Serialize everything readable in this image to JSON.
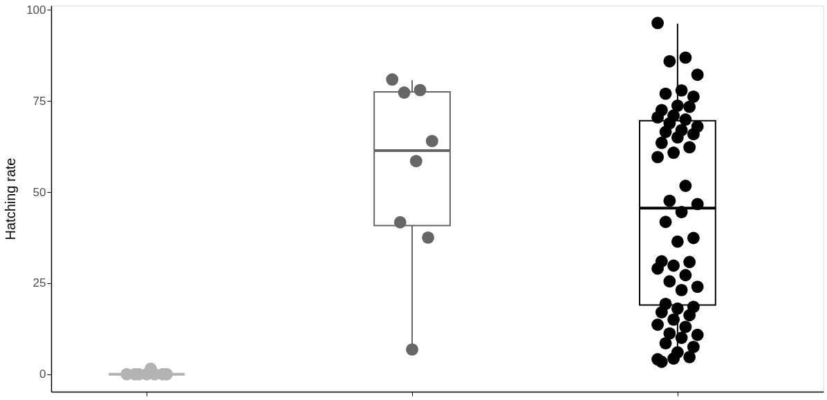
{
  "chart_data": {
    "type": "box",
    "ylabel": "Hatching rate",
    "categories": [
      null,
      null,
      null
    ],
    "colors": [
      "#b3b3b3",
      "#666666",
      "#000000"
    ],
    "boxes": [
      {
        "low": 0,
        "q1": 0,
        "median": 0,
        "q3": 0,
        "high": 0
      },
      {
        "low": 6.9,
        "q1": 40.8,
        "median": 61.4,
        "q3": 77.5,
        "high": 80.7
      },
      {
        "low": 3.3,
        "q1": 19,
        "median": 45.6,
        "q3": 69.6,
        "high": 96.2
      }
    ],
    "series": [
      {
        "type": "scatter",
        "colors": [
          "#b3b3b3",
          "#666666",
          "#000000"
        ],
        "values": [
          0,
          80.9,
          96.4
        ]
      },
      {
        "type": "scatter",
        "colors": [
          "#b3b3b3",
          "#666666",
          "#000000"
        ],
        "values": [
          0,
          78.0,
          86.9
        ]
      },
      {
        "type": "scatter",
        "colors": [
          "#b3b3b3",
          "#666666",
          "#000000"
        ],
        "values": [
          0,
          77.3,
          85.9
        ]
      },
      {
        "type": "scatter",
        "colors": [
          "#b3b3b3",
          "#666666",
          "#000000"
        ],
        "values": [
          0,
          64.0,
          82.2
        ]
      },
      {
        "type": "scatter",
        "colors": [
          "#b3b3b3",
          "#666666",
          "#000000"
        ],
        "values": [
          1.5,
          58.5,
          77.9
        ]
      },
      {
        "type": "scatter",
        "colors": [
          "#b3b3b3",
          "#666666",
          "#000000"
        ],
        "values": [
          0,
          41.7,
          77.0
        ]
      },
      {
        "type": "scatter",
        "colors": [
          "#b3b3b3",
          "#666666",
          "#000000"
        ],
        "values": [
          0,
          37.5,
          76.2
        ]
      },
      {
        "type": "scatter",
        "colors": [
          "#b3b3b3",
          "#666666",
          "#000000"
        ],
        "values": [
          0,
          6.8,
          73.7
        ]
      },
      {
        "type": "scatter",
        "colors": [
          "#b3b3b3",
          "#666666",
          "#000000"
        ],
        "values": [
          null,
          null,
          72.5
        ]
      },
      {
        "type": "scatter",
        "colors": [
          "#b3b3b3",
          "#666666",
          "#000000"
        ],
        "values": [
          null,
          null,
          73.4
        ]
      },
      {
        "type": "scatter",
        "colors": [
          "#b3b3b3",
          "#666666",
          "#000000"
        ],
        "values": [
          null,
          null,
          71.0
        ]
      },
      {
        "type": "scatter",
        "colors": [
          "#b3b3b3",
          "#666666",
          "#000000"
        ],
        "values": [
          null,
          null,
          70.5
        ]
      },
      {
        "type": "scatter",
        "colors": [
          "#b3b3b3",
          "#666666",
          "#000000"
        ],
        "values": [
          null,
          null,
          69.9
        ]
      },
      {
        "type": "scatter",
        "colors": [
          "#b3b3b3",
          "#666666",
          "#000000"
        ],
        "values": [
          null,
          null,
          68.9
        ]
      },
      {
        "type": "scatter",
        "colors": [
          "#b3b3b3",
          "#666666",
          "#000000"
        ],
        "values": [
          null,
          null,
          68.0
        ]
      },
      {
        "type": "scatter",
        "colors": [
          "#b3b3b3",
          "#666666",
          "#000000"
        ],
        "values": [
          null,
          null,
          67.0
        ]
      },
      {
        "type": "scatter",
        "colors": [
          "#b3b3b3",
          "#666666",
          "#000000"
        ],
        "values": [
          null,
          null,
          66.5
        ]
      },
      {
        "type": "scatter",
        "colors": [
          "#b3b3b3",
          "#666666",
          "#000000"
        ],
        "values": [
          null,
          null,
          65.9
        ]
      },
      {
        "type": "scatter",
        "colors": [
          "#b3b3b3",
          "#666666",
          "#000000"
        ],
        "values": [
          null,
          null,
          65.0
        ]
      },
      {
        "type": "scatter",
        "colors": [
          "#b3b3b3",
          "#666666",
          "#000000"
        ],
        "values": [
          null,
          null,
          63.5
        ]
      },
      {
        "type": "scatter",
        "colors": [
          "#b3b3b3",
          "#666666",
          "#000000"
        ],
        "values": [
          null,
          null,
          62.3
        ]
      },
      {
        "type": "scatter",
        "colors": [
          "#b3b3b3",
          "#666666",
          "#000000"
        ],
        "values": [
          null,
          null,
          60.8
        ]
      },
      {
        "type": "scatter",
        "colors": [
          "#b3b3b3",
          "#666666",
          "#000000"
        ],
        "values": [
          null,
          null,
          59.6
        ]
      },
      {
        "type": "scatter",
        "colors": [
          "#b3b3b3",
          "#666666",
          "#000000"
        ],
        "values": [
          null,
          null,
          51.7
        ]
      },
      {
        "type": "scatter",
        "colors": [
          "#b3b3b3",
          "#666666",
          "#000000"
        ],
        "values": [
          null,
          null,
          47.6
        ]
      },
      {
        "type": "scatter",
        "colors": [
          "#b3b3b3",
          "#666666",
          "#000000"
        ],
        "values": [
          null,
          null,
          46.7
        ]
      },
      {
        "type": "scatter",
        "colors": [
          "#b3b3b3",
          "#666666",
          "#000000"
        ],
        "values": [
          null,
          null,
          44.5
        ]
      },
      {
        "type": "scatter",
        "colors": [
          "#b3b3b3",
          "#666666",
          "#000000"
        ],
        "values": [
          null,
          null,
          41.8
        ]
      },
      {
        "type": "scatter",
        "colors": [
          "#b3b3b3",
          "#666666",
          "#000000"
        ],
        "values": [
          null,
          null,
          37.4
        ]
      },
      {
        "type": "scatter",
        "colors": [
          "#b3b3b3",
          "#666666",
          "#000000"
        ],
        "values": [
          null,
          null,
          36.4
        ]
      },
      {
        "type": "scatter",
        "colors": [
          "#b3b3b3",
          "#666666",
          "#000000"
        ],
        "values": [
          null,
          null,
          31.0
        ]
      },
      {
        "type": "scatter",
        "colors": [
          "#b3b3b3",
          "#666666",
          "#000000"
        ],
        "values": [
          null,
          null,
          30.8
        ]
      },
      {
        "type": "scatter",
        "colors": [
          "#b3b3b3",
          "#666666",
          "#000000"
        ],
        "values": [
          null,
          null,
          29.8
        ]
      },
      {
        "type": "scatter",
        "colors": [
          "#b3b3b3",
          "#666666",
          "#000000"
        ],
        "values": [
          null,
          null,
          29.0
        ]
      },
      {
        "type": "scatter",
        "colors": [
          "#b3b3b3",
          "#666666",
          "#000000"
        ],
        "values": [
          null,
          null,
          27.2
        ]
      },
      {
        "type": "scatter",
        "colors": [
          "#b3b3b3",
          "#666666",
          "#000000"
        ],
        "values": [
          null,
          null,
          25.5
        ]
      },
      {
        "type": "scatter",
        "colors": [
          "#b3b3b3",
          "#666666",
          "#000000"
        ],
        "values": [
          null,
          null,
          24.0
        ]
      },
      {
        "type": "scatter",
        "colors": [
          "#b3b3b3",
          "#666666",
          "#000000"
        ],
        "values": [
          null,
          null,
          23.1
        ]
      },
      {
        "type": "scatter",
        "colors": [
          "#b3b3b3",
          "#666666",
          "#000000"
        ],
        "values": [
          null,
          null,
          19.3
        ]
      },
      {
        "type": "scatter",
        "colors": [
          "#b3b3b3",
          "#666666",
          "#000000"
        ],
        "values": [
          null,
          null,
          18.5
        ]
      },
      {
        "type": "scatter",
        "colors": [
          "#b3b3b3",
          "#666666",
          "#000000"
        ],
        "values": [
          null,
          null,
          18.0
        ]
      },
      {
        "type": "scatter",
        "colors": [
          "#b3b3b3",
          "#666666",
          "#000000"
        ],
        "values": [
          null,
          null,
          17.0
        ]
      },
      {
        "type": "scatter",
        "colors": [
          "#b3b3b3",
          "#666666",
          "#000000"
        ],
        "values": [
          null,
          null,
          16.2
        ]
      },
      {
        "type": "scatter",
        "colors": [
          "#b3b3b3",
          "#666666",
          "#000000"
        ],
        "values": [
          null,
          null,
          15.0
        ]
      },
      {
        "type": "scatter",
        "colors": [
          "#b3b3b3",
          "#666666",
          "#000000"
        ],
        "values": [
          null,
          null,
          13.6
        ]
      },
      {
        "type": "scatter",
        "colors": [
          "#b3b3b3",
          "#666666",
          "#000000"
        ],
        "values": [
          null,
          null,
          13.0
        ]
      },
      {
        "type": "scatter",
        "colors": [
          "#b3b3b3",
          "#666666",
          "#000000"
        ],
        "values": [
          null,
          null,
          11.2
        ]
      },
      {
        "type": "scatter",
        "colors": [
          "#b3b3b3",
          "#666666",
          "#000000"
        ],
        "values": [
          null,
          null,
          10.8
        ]
      },
      {
        "type": "scatter",
        "colors": [
          "#b3b3b3",
          "#666666",
          "#000000"
        ],
        "values": [
          null,
          null,
          10.0
        ]
      },
      {
        "type": "scatter",
        "colors": [
          "#b3b3b3",
          "#666666",
          "#000000"
        ],
        "values": [
          null,
          null,
          8.5
        ]
      },
      {
        "type": "scatter",
        "colors": [
          "#b3b3b3",
          "#666666",
          "#000000"
        ],
        "values": [
          null,
          null,
          7.5
        ]
      },
      {
        "type": "scatter",
        "colors": [
          "#b3b3b3",
          "#666666",
          "#000000"
        ],
        "values": [
          null,
          null,
          6.0
        ]
      },
      {
        "type": "scatter",
        "colors": [
          "#b3b3b3",
          "#666666",
          "#000000"
        ],
        "values": [
          null,
          null,
          3.4
        ]
      },
      {
        "type": "scatter",
        "colors": [
          "#b3b3b3",
          "#666666",
          "#000000"
        ],
        "values": [
          null,
          null,
          4.7
        ]
      },
      {
        "type": "scatter",
        "colors": [
          "#b3b3b3",
          "#666666",
          "#000000"
        ],
        "values": [
          null,
          null,
          4.3
        ]
      },
      {
        "type": "scatter",
        "colors": [
          "#b3b3b3",
          "#666666",
          "#000000"
        ],
        "values": [
          null,
          null,
          4.1
        ]
      }
    ],
    "ylim": [
      -4.8,
      101.2
    ],
    "yticks": [
      0,
      25,
      50,
      75,
      100
    ],
    "tick_labels": "y",
    "grid": false,
    "marker": "circle"
  }
}
